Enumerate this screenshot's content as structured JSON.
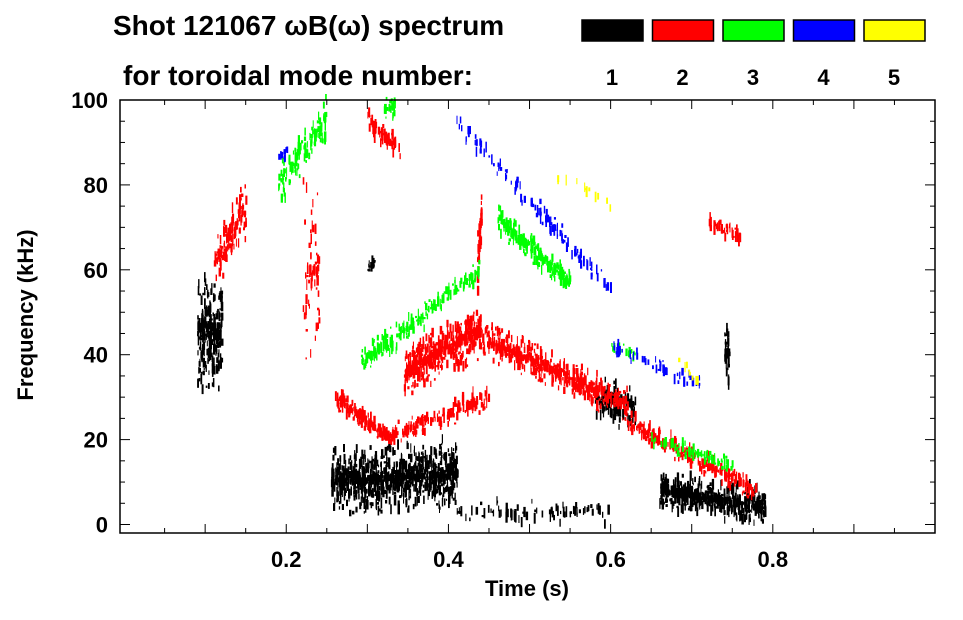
{
  "chart_data": {
    "type": "heatmap",
    "title": "Shot 121067 ωB(ω) spectrum",
    "subtitle": "for toroidal mode number:",
    "xlabel": "Time (s)",
    "ylabel": "Frequency (kHz)",
    "xlim": [
      -0.005,
      1.0
    ],
    "ylim": [
      -2,
      100
    ],
    "xticks": [
      0.2,
      0.4,
      0.6,
      0.8
    ],
    "xtick_labels": [
      "0.2",
      "0.4",
      "0.6",
      "0.8"
    ],
    "yticks": [
      0,
      20,
      40,
      60,
      80,
      100
    ],
    "ytick_labels": [
      "0",
      "20",
      "40",
      "60",
      "80",
      "100"
    ],
    "legend": [
      {
        "label": "1",
        "color": "#000000"
      },
      {
        "label": "2",
        "color": "#ff0000"
      },
      {
        "label": "3",
        "color": "#00ff00"
      },
      {
        "label": "4",
        "color": "#0000ff"
      },
      {
        "label": "5",
        "color": "#ffff00"
      }
    ],
    "legend_placement": "top-right",
    "segments_note_units": "each segment: [t_start_s, f_start_kHz, t_end_s, f_end_kHz, spread_kHz, density]",
    "series": [
      {
        "mode": 1,
        "color": "#000000",
        "segments": [
          [
            0.09,
            45,
            0.12,
            45,
            15,
            260
          ],
          [
            0.255,
            10,
            0.41,
            12,
            9,
            900
          ],
          [
            0.66,
            8,
            0.79,
            4,
            5,
            500
          ],
          [
            0.58,
            30,
            0.63,
            28,
            6,
            120
          ],
          [
            0.74,
            40,
            0.745,
            40,
            10,
            40
          ],
          [
            0.3,
            61,
            0.31,
            61,
            2,
            15
          ],
          [
            0.41,
            3,
            0.6,
            3,
            3,
            80
          ]
        ]
      },
      {
        "mode": 2,
        "color": "#ff0000",
        "segments": [
          [
            0.26,
            30,
            0.33,
            20,
            3,
            150
          ],
          [
            0.33,
            21,
            0.45,
            30,
            3,
            150
          ],
          [
            0.345,
            36,
            0.44,
            46,
            7,
            500
          ],
          [
            0.44,
            44,
            0.62,
            28,
            5,
            500
          ],
          [
            0.62,
            24,
            0.78,
            8,
            3,
            220
          ],
          [
            0.11,
            62,
            0.15,
            75,
            8,
            120
          ],
          [
            0.3,
            95,
            0.34,
            88,
            3,
            60
          ],
          [
            0.72,
            71,
            0.76,
            68,
            2,
            40
          ],
          [
            0.22,
            60,
            0.24,
            60,
            30,
            60
          ],
          [
            0.435,
            60,
            0.44,
            75,
            8,
            40
          ]
        ]
      },
      {
        "mode": 3,
        "color": "#00ff00",
        "segments": [
          [
            0.29,
            38,
            0.44,
            60,
            4,
            180
          ],
          [
            0.46,
            72,
            0.55,
            57,
            4,
            200
          ],
          [
            0.65,
            20,
            0.75,
            14,
            2,
            70
          ],
          [
            0.19,
            80,
            0.25,
            96,
            6,
            120
          ],
          [
            0.32,
            98,
            0.335,
            98,
            3,
            30
          ],
          [
            0.6,
            42,
            0.63,
            40,
            2,
            20
          ]
        ]
      },
      {
        "mode": 4,
        "color": "#0000ff",
        "segments": [
          [
            0.41,
            95,
            0.6,
            55,
            3,
            120
          ],
          [
            0.6,
            42,
            0.71,
            33,
            2,
            50
          ],
          [
            0.19,
            87,
            0.2,
            87,
            2,
            10
          ]
        ]
      },
      {
        "mode": 5,
        "color": "#ffff00",
        "segments": [
          [
            0.53,
            83,
            0.6,
            75,
            2,
            12
          ],
          [
            0.68,
            40,
            0.72,
            30,
            2,
            10
          ]
        ]
      }
    ]
  }
}
